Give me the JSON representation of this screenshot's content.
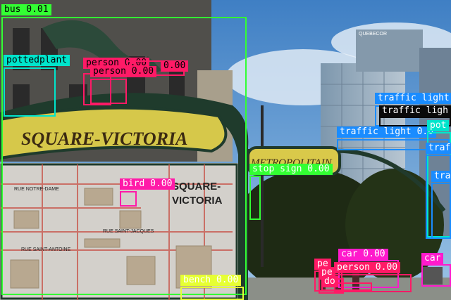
{
  "image": {
    "sign_text": "SQUARE-VICTORIA",
    "sign_text_right": "METROPOLITAIN",
    "map_label": "SQUARE-\nVICTORIA",
    "map_street_1": "RUE SAINT-JACQUES",
    "map_street_2": "RUE NOTRE-DAME",
    "map_street_3": "RUE SAINT-ANTOINE",
    "building_sign": "QUEBECOR"
  },
  "detections": [
    {
      "label": "bus 0.01",
      "color": "#33ff33",
      "text_color": "#000000"
    },
    {
      "label": "pottedplant",
      "color": "#00e5cc",
      "text_color": "#000000"
    },
    {
      "label": "person 0.00",
      "color": "#ff1a66",
      "text_color": "#000000"
    },
    {
      "label": "person 0.00",
      "color": "#ff1a66",
      "text_color": "#000000"
    },
    {
      "label": "0.00",
      "color": "#ff1a66",
      "text_color": "#000000"
    },
    {
      "label": "traffic light",
      "color": "#1a8cff",
      "text_color": "#ffffff"
    },
    {
      "label": "traffic ligh",
      "color": "#0a0a0a",
      "text_color": "#ffffff"
    },
    {
      "label": "traffic light 0.0",
      "color": "#1a8cff",
      "text_color": "#ffffff"
    },
    {
      "label": "pot",
      "color": "#00e5cc",
      "text_color": "#ffffff"
    },
    {
      "label": "traf",
      "color": "#1a8cff",
      "text_color": "#ffffff"
    },
    {
      "label": "tra",
      "color": "#1a8cff",
      "text_color": "#ffffff"
    },
    {
      "label": "stop sign 0.00",
      "color": "#33ff33",
      "text_color": "#ffffff"
    },
    {
      "label": "bird 0.00",
      "color": "#ff1aa8",
      "text_color": "#ffffff"
    },
    {
      "label": "bench 0.00",
      "color": "#e6ff33",
      "text_color": "#ffffff"
    },
    {
      "label": "car 0.00",
      "color": "#ff1acc",
      "text_color": "#ffffff"
    },
    {
      "label": "car",
      "color": "#ff1acc",
      "text_color": "#ffffff"
    },
    {
      "label": "person 0.00",
      "color": "#ff1a66",
      "text_color": "#ffffff"
    },
    {
      "label": "pe",
      "color": "#ff1a66",
      "text_color": "#ffffff"
    },
    {
      "label": "pe",
      "color": "#ff1a66",
      "text_color": "#ffffff"
    },
    {
      "label": "do",
      "color": "#ff1a66",
      "text_color": "#ffffff"
    }
  ]
}
